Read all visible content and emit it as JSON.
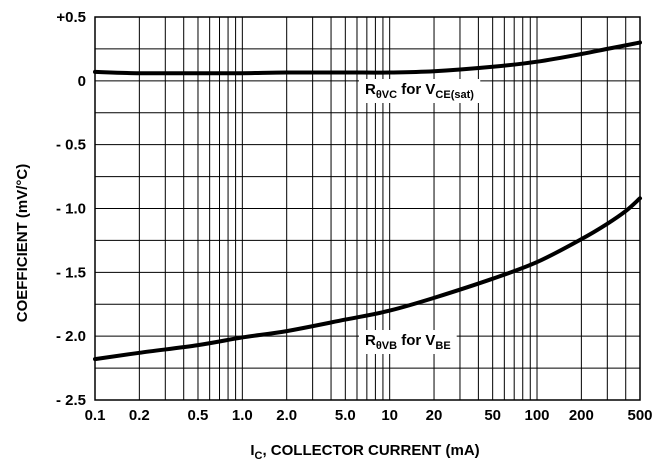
{
  "chart_data": {
    "type": "line",
    "title": "",
    "xlabel": {
      "main": "I",
      "sub": "C",
      "rest": ", COLLECTOR CURRENT (mA)"
    },
    "ylabel": "COEFFICIENT (mV/°C)",
    "xscale": "log",
    "xlim": [
      0.1,
      500
    ],
    "ylim": [
      -2.5,
      0.5
    ],
    "grid": true,
    "x_tick_values": [
      0.1,
      0.2,
      0.5,
      1.0,
      2.0,
      5.0,
      10,
      20,
      50,
      100,
      200,
      500
    ],
    "x_tick_labels": [
      "0.1",
      "0.2",
      "0.5",
      "1.0",
      "2.0",
      "5.0",
      "10",
      "20",
      "50",
      "100",
      "200",
      "500"
    ],
    "y_tick_values": [
      0.5,
      0.0,
      -0.5,
      -1.0,
      -1.5,
      -2.0,
      -2.5
    ],
    "y_tick_labels": [
      "+0.5",
      "0",
      "- 0.5",
      "- 1.0",
      "- 1.5",
      "- 2.0",
      "- 2.5"
    ],
    "series": [
      {
        "name": "RθVC for VCE(sat)",
        "label": {
          "parts": [
            {
              "text": "R",
              "sub": false
            },
            {
              "text": "θVC",
              "sub": true
            },
            {
              "text": " for V",
              "sub": false
            },
            {
              "text": "CE(sat)",
              "sub": true
            }
          ]
        },
        "x": [
          0.1,
          0.2,
          0.5,
          1.0,
          2.0,
          5.0,
          10,
          20,
          50,
          100,
          200,
          300,
          500
        ],
        "y": [
          0.07,
          0.06,
          0.06,
          0.06,
          0.065,
          0.065,
          0.065,
          0.075,
          0.11,
          0.15,
          0.21,
          0.25,
          0.3
        ]
      },
      {
        "name": "RθVB for VBE",
        "label": {
          "parts": [
            {
              "text": "R",
              "sub": false
            },
            {
              "text": "θVB",
              "sub": true
            },
            {
              "text": " for V",
              "sub": false
            },
            {
              "text": "BE",
              "sub": true
            }
          ]
        },
        "x": [
          0.1,
          0.2,
          0.5,
          1.0,
          2.0,
          5.0,
          10,
          20,
          50,
          100,
          200,
          300,
          400,
          500
        ],
        "y": [
          -2.18,
          -2.13,
          -2.07,
          -2.01,
          -1.96,
          -1.87,
          -1.8,
          -1.7,
          -1.55,
          -1.42,
          -1.24,
          -1.12,
          -1.02,
          -0.92
        ]
      }
    ]
  }
}
